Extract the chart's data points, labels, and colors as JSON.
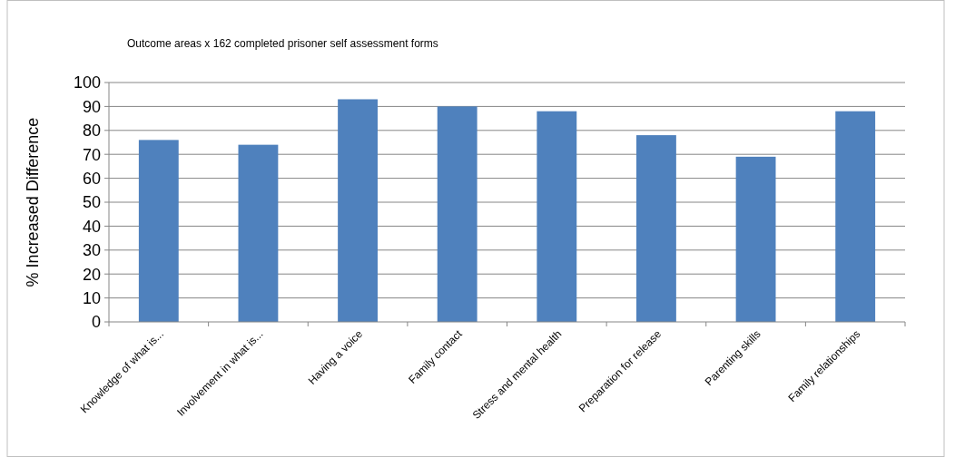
{
  "chart_data": {
    "type": "bar",
    "title": "Outcome areas x 162 completed prisoner self assessment  forms",
    "ylabel": "% Increased Difference",
    "categories": [
      "Knowledge of what is...",
      "Involvement in what is...",
      "Having a voice",
      "Family contact",
      "Stress and mental health",
      "Preparation for release",
      "Parenting skills",
      "Family relationships"
    ],
    "values": [
      76,
      74,
      93,
      90,
      88,
      78,
      69,
      88
    ],
    "color": "#4f81bd",
    "ylim": [
      0,
      100
    ],
    "yticks": [
      0,
      10,
      20,
      30,
      40,
      50,
      60,
      70,
      80,
      90,
      100
    ],
    "grid": "y"
  }
}
